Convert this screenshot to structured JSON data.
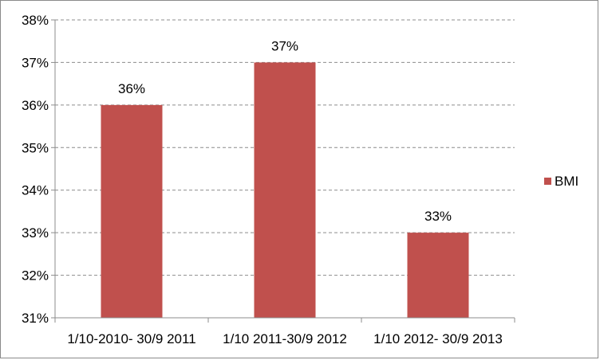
{
  "chart_data": {
    "type": "bar",
    "categories": [
      "1/10-2010- 30/9 2011",
      "1/10 2011-30/9 2012",
      "1/10 2012- 30/9 2013"
    ],
    "series": [
      {
        "name": "BMI",
        "values": [
          36,
          37,
          33
        ],
        "color": "#c0504d"
      }
    ],
    "data_labels": [
      "36%",
      "37%",
      "33%"
    ],
    "y_ticks": [
      "31%",
      "32%",
      "33%",
      "34%",
      "35%",
      "36%",
      "37%",
      "38%"
    ],
    "ylim": [
      31,
      38
    ],
    "y_unit": "%",
    "grid": true,
    "grid_style": "dashed",
    "legend_position": "right"
  }
}
